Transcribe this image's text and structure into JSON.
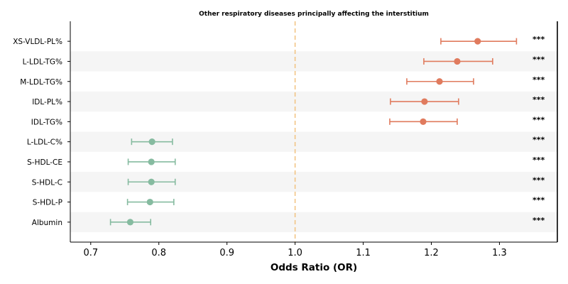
{
  "chart_data": {
    "type": "forest",
    "title": "Other respiratory diseases principally affecting the interstitium",
    "xlabel": "Odds Ratio (OR)",
    "xlim": [
      0.67,
      1.385
    ],
    "xticks": [
      "0.7",
      "0.8",
      "0.9",
      "1.0",
      "1.1",
      "1.2",
      "1.3"
    ],
    "reference_line": 1.0,
    "colors": {
      "risk": "#e07b5e",
      "protective": "#86bba0",
      "reference": "#f2c27f",
      "band": "#f5f5f5"
    },
    "rows": [
      {
        "label": "XS-VLDL-PL%",
        "or": 1.268,
        "lower": 1.214,
        "upper": 1.325,
        "sig": "***",
        "group": "risk"
      },
      {
        "label": "L-LDL-TG%",
        "or": 1.238,
        "lower": 1.189,
        "upper": 1.29,
        "sig": "***",
        "group": "risk"
      },
      {
        "label": "M-LDL-TG%",
        "or": 1.212,
        "lower": 1.164,
        "upper": 1.262,
        "sig": "***",
        "group": "risk"
      },
      {
        "label": "IDL-PL%",
        "or": 1.19,
        "lower": 1.14,
        "upper": 1.24,
        "sig": "***",
        "group": "risk"
      },
      {
        "label": "IDL-TG%",
        "or": 1.188,
        "lower": 1.139,
        "upper": 1.238,
        "sig": "***",
        "group": "risk"
      },
      {
        "label": "L-LDL-C%",
        "or": 0.79,
        "lower": 0.76,
        "upper": 0.82,
        "sig": "***",
        "group": "protective"
      },
      {
        "label": "S-HDL-CE",
        "or": 0.789,
        "lower": 0.755,
        "upper": 0.824,
        "sig": "***",
        "group": "protective"
      },
      {
        "label": "S-HDL-C",
        "or": 0.789,
        "lower": 0.755,
        "upper": 0.824,
        "sig": "***",
        "group": "protective"
      },
      {
        "label": "S-HDL-P",
        "or": 0.787,
        "lower": 0.754,
        "upper": 0.822,
        "sig": "***",
        "group": "protective"
      },
      {
        "label": "Albumin",
        "or": 0.758,
        "lower": 0.729,
        "upper": 0.788,
        "sig": "***",
        "group": "protective"
      }
    ]
  }
}
